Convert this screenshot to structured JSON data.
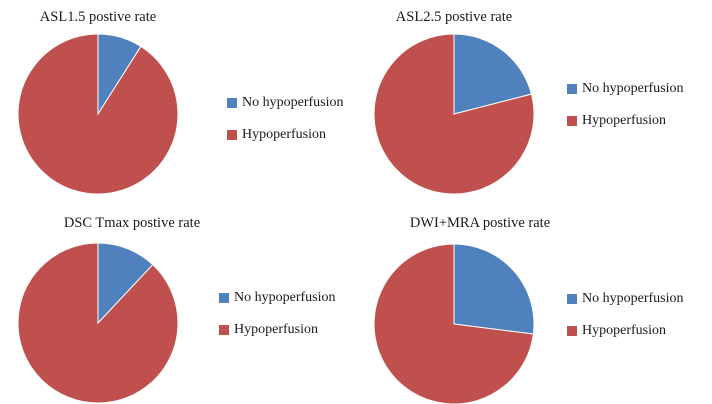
{
  "colors": {
    "no_hypoperfusion": "#4f81bd",
    "hypoperfusion": "#c0504d"
  },
  "chart_data": [
    {
      "type": "pie",
      "title": "ASL1.5 postive rate",
      "labels": [
        "No hypoperfusion",
        "Hypoperfusion"
      ],
      "values": [
        9,
        91
      ],
      "legend": "right"
    },
    {
      "type": "pie",
      "title": "ASL2.5 postive rate",
      "labels": [
        "No hypoperfusion",
        "Hypoperfusion"
      ],
      "values": [
        21,
        79
      ],
      "legend": "right"
    },
    {
      "type": "pie",
      "title": "DSC Tmax postive rate",
      "labels": [
        "No hypoperfusion",
        "Hypoperfusion"
      ],
      "values": [
        12,
        88
      ],
      "legend": "right"
    },
    {
      "type": "pie",
      "title": "DWI+MRA postive rate",
      "labels": [
        "No hypoperfusion",
        "Hypoperfusion"
      ],
      "values": [
        27,
        73
      ],
      "legend": "right"
    }
  ]
}
